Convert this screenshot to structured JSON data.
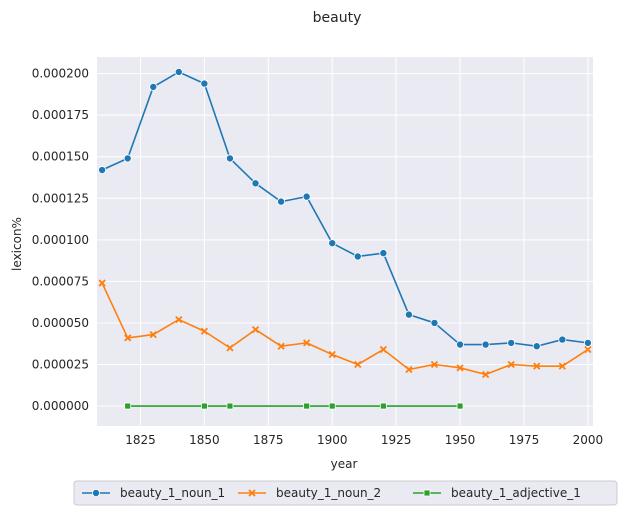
{
  "chart_data": {
    "type": "line",
    "title": "beauty",
    "xlabel": "year",
    "ylabel": "lexicon%",
    "xlim": [
      1808,
      2002
    ],
    "ylim": [
      -1.2e-05,
      0.00021
    ],
    "xticks": [
      1825,
      1850,
      1875,
      1900,
      1925,
      1950,
      1975,
      2000
    ],
    "xtick_labels": [
      "1825",
      "1850",
      "1875",
      "1900",
      "1925",
      "1950",
      "1975",
      "2000"
    ],
    "yticks": [
      0,
      2.5e-05,
      5e-05,
      7.5e-05,
      0.0001,
      0.000125,
      0.00015,
      0.000175,
      0.0002
    ],
    "ytick_labels": [
      "0.000000",
      "0.000025",
      "0.000050",
      "0.000075",
      "0.000100",
      "0.000125",
      "0.000150",
      "0.000175",
      "0.000200"
    ],
    "grid": true,
    "legend_position": "bottom-center",
    "background": "#eaeaf2",
    "series": [
      {
        "name": "beauty_1_noun_1",
        "color": "#1f77b4",
        "marker": "circle",
        "x": [
          1810,
          1820,
          1830,
          1840,
          1850,
          1860,
          1870,
          1880,
          1890,
          1900,
          1910,
          1920,
          1930,
          1940,
          1950,
          1960,
          1970,
          1980,
          1990,
          2000
        ],
        "y": [
          0.000142,
          0.000149,
          0.000192,
          0.000201,
          0.000194,
          0.000149,
          0.000134,
          0.000123,
          0.000126,
          9.8e-05,
          9e-05,
          9.2e-05,
          5.5e-05,
          5e-05,
          3.7e-05,
          3.7e-05,
          3.8e-05,
          3.6e-05,
          4e-05,
          3.8e-05
        ]
      },
      {
        "name": "beauty_1_noun_2",
        "color": "#ff7f0e",
        "marker": "x",
        "x": [
          1810,
          1820,
          1830,
          1840,
          1850,
          1860,
          1870,
          1880,
          1890,
          1900,
          1910,
          1920,
          1930,
          1940,
          1950,
          1960,
          1970,
          1980,
          1990,
          2000
        ],
        "y": [
          7.4e-05,
          4.1e-05,
          4.3e-05,
          5.2e-05,
          4.5e-05,
          3.5e-05,
          4.6e-05,
          3.6e-05,
          3.8e-05,
          3.1e-05,
          2.5e-05,
          3.4e-05,
          2.2e-05,
          2.5e-05,
          2.3e-05,
          1.9e-05,
          2.5e-05,
          2.4e-05,
          2.4e-05,
          3.4e-05
        ]
      },
      {
        "name": "beauty_1_adjective_1",
        "color": "#2ca02c",
        "marker": "square",
        "x": [
          1820,
          1850,
          1860,
          1890,
          1900,
          1920,
          1950
        ],
        "y": [
          0,
          0,
          0,
          0,
          0,
          0,
          0
        ]
      }
    ]
  }
}
